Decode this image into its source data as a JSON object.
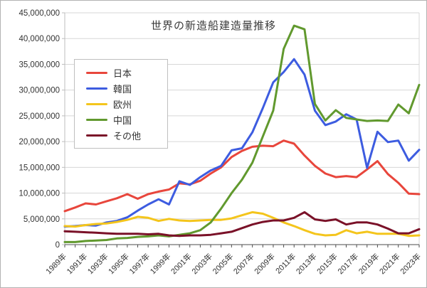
{
  "chart_data": {
    "type": "line",
    "title": "世界の新造船建造量推移",
    "xlabel": "",
    "ylabel": "",
    "ylim": [
      0,
      45000000
    ],
    "y_tick_interval": 5000000,
    "grid": "horizontal",
    "legend_position": "upper-left-inside",
    "x": [
      1989,
      1990,
      1991,
      1992,
      1993,
      1994,
      1995,
      1996,
      1997,
      1998,
      1999,
      2000,
      2001,
      2002,
      2003,
      2004,
      2005,
      2006,
      2007,
      2008,
      2009,
      2010,
      2011,
      2012,
      2013,
      2014,
      2015,
      2016,
      2017,
      2018,
      2019,
      2020,
      2021,
      2022,
      2023
    ],
    "x_labels": [
      "1989年",
      "1991年",
      "1993年",
      "1995年",
      "1997年",
      "1999年",
      "2001年",
      "2003年",
      "2005年",
      "2007年",
      "2009年",
      "2011年",
      "2013年",
      "2015年",
      "2017年",
      "2019年",
      "2021年",
      "2023年"
    ],
    "y_tick_labels": [
      "0",
      "5,000,000",
      "10,000,000",
      "15,000,000",
      "20,000,000",
      "25,000,000",
      "30,000,000",
      "35,000,000",
      "40,000,000",
      "45,000,000"
    ],
    "series": [
      {
        "key": "japan",
        "name": "日本",
        "color": "#e8463c",
        "values": [
          6500000,
          7200000,
          8000000,
          7800000,
          8400000,
          9000000,
          9800000,
          8900000,
          9800000,
          10300000,
          10700000,
          11900000,
          11700000,
          12400000,
          13800000,
          15000000,
          17000000,
          18200000,
          19000000,
          19200000,
          19100000,
          20200000,
          19600000,
          17300000,
          15300000,
          13800000,
          13100000,
          13300000,
          13100000,
          14600000,
          16200000,
          13700000,
          12000000,
          9900000,
          9800000
        ]
      },
      {
        "key": "korea",
        "name": "韓国",
        "color": "#3d5ce0",
        "values": [
          3500000,
          3600000,
          3800000,
          3700000,
          4300000,
          4600000,
          5300000,
          6600000,
          7800000,
          8800000,
          7800000,
          12300000,
          11600000,
          13100000,
          14400000,
          15300000,
          18300000,
          18700000,
          21800000,
          26500000,
          31500000,
          33500000,
          36000000,
          33000000,
          26000000,
          23200000,
          23900000,
          25300000,
          24300000,
          14900000,
          21900000,
          19900000,
          20200000,
          16300000,
          18400000
        ]
      },
      {
        "key": "europe",
        "name": "欧州",
        "color": "#f4c51c",
        "values": [
          3600000,
          3500000,
          3800000,
          4000000,
          4100000,
          4400000,
          4800000,
          5400000,
          5200000,
          4600000,
          5000000,
          4700000,
          4600000,
          4700000,
          4800000,
          4800000,
          5100000,
          5700000,
          6300000,
          6000000,
          5200000,
          4300000,
          3600000,
          2800000,
          2100000,
          1800000,
          1900000,
          2800000,
          2200000,
          2500000,
          2100000,
          2100000,
          2100000,
          1700000,
          1800000
        ]
      },
      {
        "key": "china",
        "name": "中国",
        "color": "#61992e",
        "values": [
          500000,
          500000,
          700000,
          800000,
          900000,
          1200000,
          1300000,
          1500000,
          1600000,
          1800000,
          1600000,
          1900000,
          2200000,
          2800000,
          4300000,
          7000000,
          10000000,
          12600000,
          15900000,
          21000000,
          26000000,
          38000000,
          42500000,
          41800000,
          27300000,
          24100000,
          26100000,
          24600000,
          24300000,
          24000000,
          24100000,
          24000000,
          27200000,
          25500000,
          31000000
        ]
      },
      {
        "key": "others",
        "name": "その他",
        "color": "#7a1128",
        "values": [
          2600000,
          2500000,
          2400000,
          2300000,
          2200000,
          2100000,
          2100000,
          2100000,
          2000000,
          2100000,
          1800000,
          1700000,
          1800000,
          1800000,
          1900000,
          2200000,
          2500000,
          3200000,
          3900000,
          4400000,
          4700000,
          4700000,
          5200000,
          6300000,
          4900000,
          4600000,
          4900000,
          3900000,
          4300000,
          4300000,
          3900000,
          3100000,
          2200000,
          2200000,
          3000000
        ]
      }
    ]
  }
}
